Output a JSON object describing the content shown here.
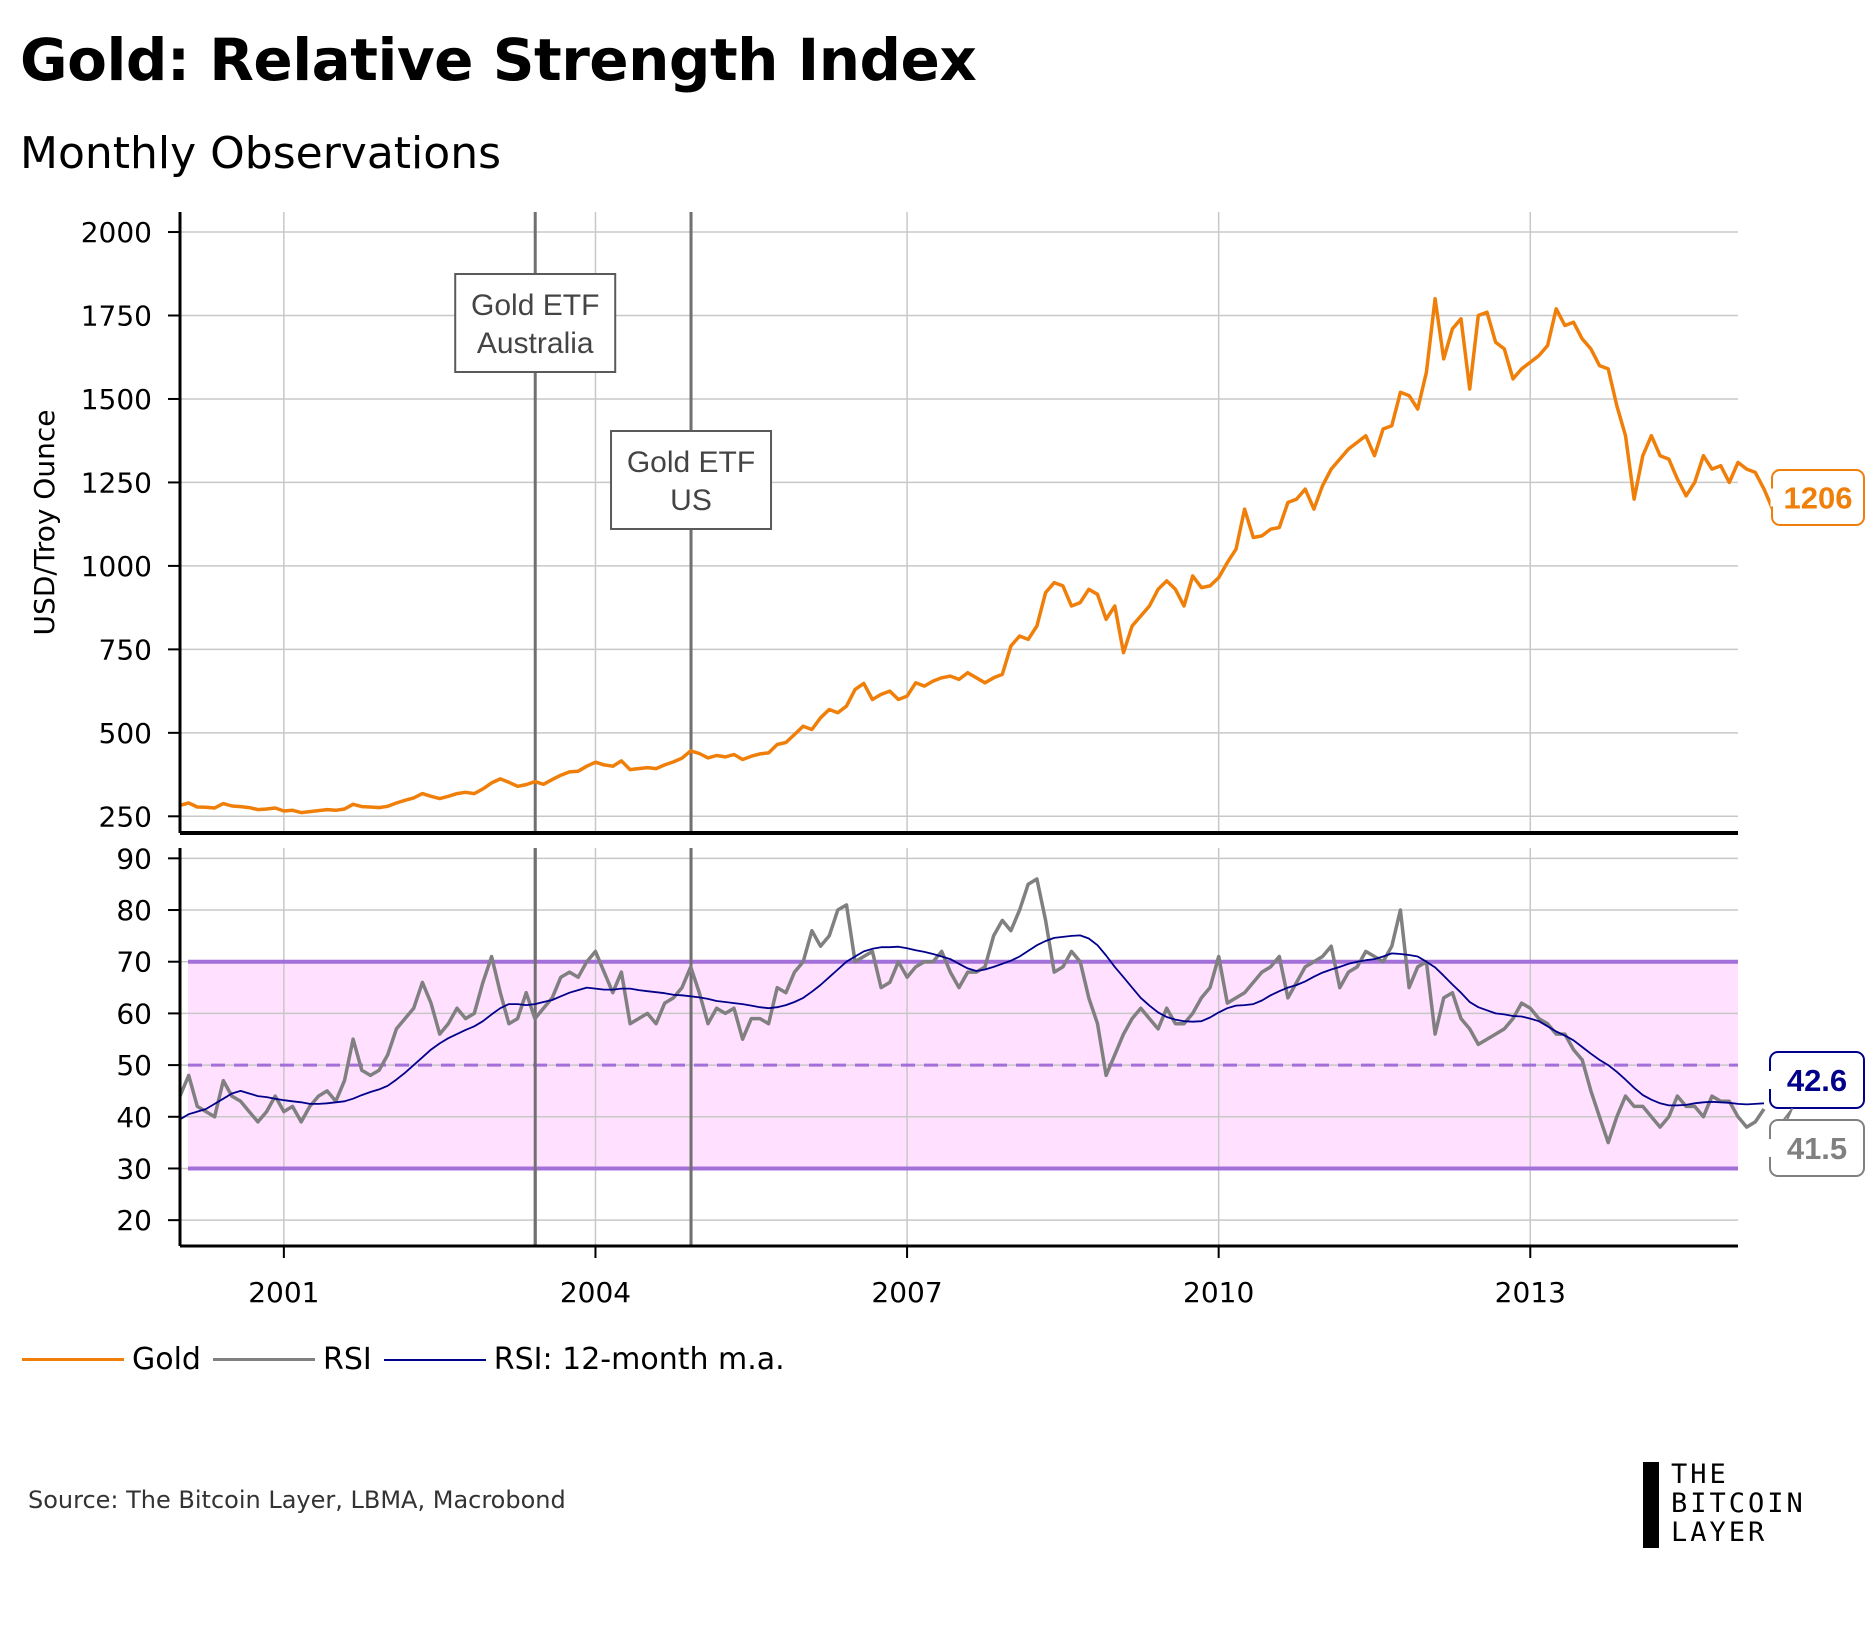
{
  "header": {
    "title": "Gold: Relative Strength Index",
    "subtitle": "Monthly Observations"
  },
  "source": "Source: The Bitcoin Layer, LBMA, Macrobond",
  "logo": {
    "line1": "THE",
    "line2": "BITCOIN",
    "line3": "LAYER"
  },
  "colors": {
    "gold": "#f07f0a",
    "rsi": "#808080",
    "rsi_ma": "#00008b",
    "band_fill": "#ffe0ff",
    "band_line": "#a36fd9",
    "event_line": "#707070",
    "grid": "#c8c8c8"
  },
  "chart_data": [
    {
      "type": "line",
      "panel": "top",
      "ylabel": "USD/Troy Ounce",
      "ylim": [
        200,
        2060
      ],
      "yticks": [
        250,
        500,
        750,
        1000,
        1250,
        1500,
        1750,
        2000
      ],
      "xlim": [
        2000.0,
        2015.0
      ],
      "x_ticks": [
        2001,
        2004,
        2007,
        2010,
        2013
      ],
      "x_tick_labels": [
        "2001",
        "2004",
        "2007",
        "2010",
        "2013"
      ],
      "series": [
        {
          "name": "Gold",
          "x_start": 2000.0,
          "x_step_months": 1,
          "values": [
            283,
            290,
            278,
            277,
            275,
            288,
            281,
            279,
            276,
            270,
            272,
            275,
            266,
            268,
            261,
            264,
            267,
            270,
            268,
            272,
            286,
            279,
            278,
            276,
            280,
            290,
            298,
            305,
            318,
            310,
            303,
            310,
            318,
            322,
            318,
            332,
            350,
            362,
            352,
            340,
            345,
            354,
            346,
            360,
            373,
            383,
            385,
            400,
            412,
            404,
            400,
            416,
            390,
            393,
            396,
            393,
            404,
            413,
            424,
            446,
            438,
            425,
            432,
            428,
            435,
            420,
            430,
            437,
            440,
            465,
            471,
            495,
            520,
            510,
            545,
            570,
            560,
            580,
            630,
            648,
            600,
            615,
            625,
            600,
            610,
            650,
            640,
            655,
            665,
            670,
            660,
            680,
            665,
            650,
            665,
            675,
            760,
            790,
            780,
            820,
            920,
            950,
            940,
            880,
            890,
            930,
            915,
            840,
            880,
            740,
            820,
            850,
            880,
            930,
            955,
            930,
            880,
            970,
            935,
            940,
            965,
            1010,
            1050,
            1170,
            1085,
            1090,
            1110,
            1115,
            1190,
            1200,
            1230,
            1170,
            1240,
            1290,
            1320,
            1350,
            1370,
            1390,
            1330,
            1410,
            1420,
            1520,
            1510,
            1470,
            1580,
            1800,
            1620,
            1710,
            1740,
            1530,
            1750,
            1760,
            1670,
            1650,
            1560,
            1590,
            1610,
            1630,
            1660,
            1770,
            1720,
            1730,
            1680,
            1650,
            1600,
            1590,
            1480,
            1390,
            1200,
            1330,
            1390,
            1330,
            1320,
            1260,
            1210,
            1250,
            1330,
            1290,
            1300,
            1250,
            1310,
            1290,
            1280,
            1230,
            1170,
            1190,
            1206
          ]
        }
      ],
      "annotations": [
        {
          "label_line1": "Gold ETF",
          "label_line2": "Australia",
          "x": 2003.42
        },
        {
          "label_line1": "Gold ETF",
          "label_line2": "US",
          "x": 2004.92
        }
      ],
      "end_label": "1206"
    },
    {
      "type": "line",
      "panel": "bottom",
      "ylim": [
        15,
        92
      ],
      "yticks": [
        20,
        30,
        40,
        50,
        60,
        70,
        80,
        90
      ],
      "overbought": 70,
      "oversold": 30,
      "midline": 50,
      "xlim": [
        2000.0,
        2015.0
      ],
      "series": [
        {
          "name": "RSI",
          "x_start": 2000.0,
          "x_step_months": 1,
          "values": [
            44,
            48,
            42,
            41,
            40,
            47,
            44,
            43,
            41,
            39,
            41,
            44,
            41,
            42,
            39,
            42,
            44,
            45,
            43,
            47,
            55,
            49,
            48,
            49,
            52,
            57,
            59,
            61,
            66,
            62,
            56,
            58,
            61,
            59,
            60,
            66,
            71,
            64,
            58,
            59,
            64,
            59,
            61,
            63,
            67,
            68,
            67,
            70,
            72,
            68,
            64,
            68,
            58,
            59,
            60,
            58,
            62,
            63,
            65,
            69,
            64,
            58,
            61,
            60,
            61,
            55,
            59,
            59,
            58,
            65,
            64,
            68,
            70,
            76,
            73,
            75,
            80,
            81,
            70,
            71,
            72,
            65,
            66,
            70,
            67,
            69,
            70,
            70,
            72,
            68,
            65,
            68,
            68,
            69,
            75,
            78,
            76,
            80,
            85,
            86,
            78,
            68,
            69,
            72,
            70,
            63,
            58,
            48,
            52,
            56,
            59,
            61,
            59,
            57,
            61,
            58,
            58,
            60,
            63,
            65,
            71,
            62,
            63,
            64,
            66,
            68,
            69,
            71,
            63,
            66,
            69,
            70,
            71,
            73,
            65,
            68,
            69,
            72,
            71,
            70,
            73,
            80,
            65,
            69,
            70,
            56,
            63,
            64,
            59,
            57,
            54,
            55,
            56,
            57,
            59,
            62,
            61,
            59,
            58,
            56,
            56,
            53,
            51,
            45,
            40,
            35,
            40,
            44,
            42,
            42,
            40,
            38,
            40,
            44,
            42,
            42,
            40,
            44,
            43,
            43,
            40,
            38,
            39,
            41.5
          ]
        },
        {
          "name": "RSI: 12-month m.a.",
          "x_start": 2000.0,
          "x_step_months": 1,
          "values": [
            39.5,
            40.5,
            41,
            41.5,
            42.5,
            43.5,
            44.5,
            45,
            44.5,
            44,
            43.8,
            43.5,
            43.2,
            43,
            42.8,
            42.5,
            42.5,
            42.6,
            42.8,
            43,
            43.5,
            44.2,
            44.8,
            45.3,
            46,
            47.2,
            48.5,
            50,
            51.5,
            53,
            54.2,
            55.2,
            56,
            56.8,
            57.5,
            58.5,
            59.8,
            61,
            61.8,
            61.8,
            61.6,
            61.8,
            62.2,
            62.6,
            63.3,
            64,
            64.5,
            65,
            64.8,
            64.6,
            64.6,
            64.8,
            64.8,
            64.5,
            64.3,
            64.1,
            63.9,
            63.6,
            63.5,
            63.3,
            63.1,
            62.8,
            62.4,
            62.2,
            62.0,
            61.8,
            61.5,
            61.2,
            61.0,
            61.2,
            61.6,
            62.2,
            63,
            64.2,
            65.5,
            67,
            68.5,
            70,
            71,
            72,
            72.5,
            72.8,
            72.8,
            72.9,
            72.6,
            72.2,
            71.9,
            71.5,
            71,
            70.5,
            69.6,
            68.7,
            68.2,
            68.5,
            69,
            69.6,
            70.2,
            71,
            72.1,
            73.2,
            74,
            74.6,
            74.8,
            75,
            75.1,
            74.5,
            73.2,
            71.2,
            69,
            67,
            65,
            63,
            61.5,
            60.2,
            59.3,
            58.8,
            58.5,
            58.4,
            58.5,
            59.2,
            60.2,
            61,
            61.5,
            61.6,
            61.8,
            62.5,
            63.5,
            64.3,
            65,
            65.5,
            66.2,
            67.1,
            67.9,
            68.5,
            69,
            69.6,
            70,
            70.3,
            70.5,
            71,
            71.6,
            71.5,
            71.3,
            71,
            70,
            68.9,
            67.3,
            65.6,
            64,
            62.2,
            61.2,
            60.6,
            60,
            59.8,
            59.5,
            59.4,
            59,
            58.5,
            57.5,
            56.5,
            55.7,
            54.8,
            53.5,
            52.2,
            51,
            50,
            48.7,
            47.2,
            45.6,
            44.2,
            43.3,
            42.6,
            42.2,
            42.2,
            42.3,
            42.6,
            42.8,
            42.9,
            42.8,
            42.7,
            42.5,
            42.4,
            42.5,
            42.6
          ]
        }
      ],
      "end_label_ma": "42.6",
      "end_label_rsi": "41.5"
    }
  ],
  "legend": [
    {
      "name": "gold",
      "label": "Gold",
      "color": "#f07f0a"
    },
    {
      "name": "rsi",
      "label": "RSI",
      "color": "#808080"
    },
    {
      "name": "rsi-ma",
      "label": "RSI: 12-month m.a.",
      "color": "#00008b"
    }
  ]
}
